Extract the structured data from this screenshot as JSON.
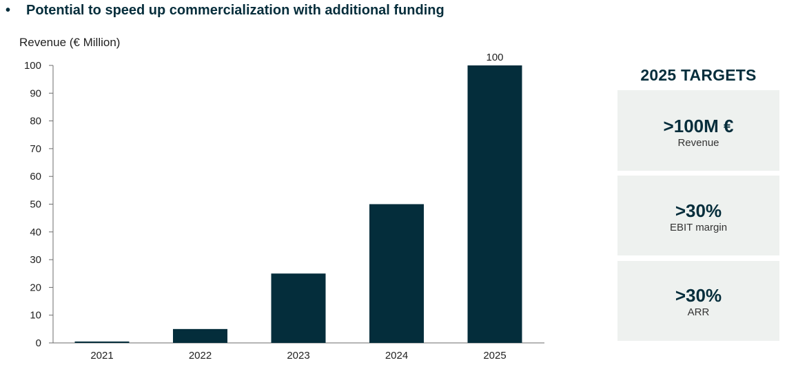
{
  "heading": {
    "bullet": "•",
    "text": "Potential to speed up commercialization with additional funding"
  },
  "chart_data": {
    "type": "bar",
    "ylabel": "Revenue (€ Million)",
    "categories": [
      "2021",
      "2022",
      "2023",
      "2024",
      "2025"
    ],
    "values": [
      0.5,
      5,
      25,
      50,
      100
    ],
    "data_labels": [
      "",
      "",
      "",
      "",
      "100"
    ],
    "yticks": [
      0,
      10,
      20,
      30,
      40,
      50,
      60,
      70,
      80,
      90,
      100
    ],
    "ylim": [
      0,
      100
    ],
    "grid": false,
    "bar_color": "#042d3b"
  },
  "targets": {
    "title": "2025 TARGETS",
    "cards": [
      {
        "value": ">100M €",
        "label": "Revenue"
      },
      {
        "value": ">30%",
        "label": "EBIT margin"
      },
      {
        "value": ">30%",
        "label": "ARR"
      }
    ]
  },
  "colors": {
    "accent": "#052d3b",
    "card_background": "#eef1ef"
  }
}
